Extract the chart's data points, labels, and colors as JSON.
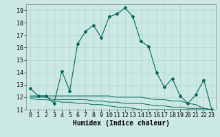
{
  "xlabel": "Humidex (Indice chaleur)",
  "background_color": "#cbe8e4",
  "grid_color": "#b0d4d0",
  "line_color": "#006655",
  "main_y": [
    12.7,
    12.1,
    12.1,
    11.5,
    14.1,
    12.5,
    16.3,
    17.3,
    17.8,
    16.8,
    18.5,
    18.7,
    19.2,
    18.5,
    16.5,
    16.1,
    14.0,
    12.8,
    13.5,
    12.1,
    11.5,
    12.2,
    13.4,
    11.0
  ],
  "line2_y": [
    12.1,
    12.1,
    12.1,
    12.1,
    12.1,
    12.1,
    12.1,
    12.1,
    12.1,
    12.1,
    12.1,
    12.0,
    12.0,
    12.0,
    12.0,
    11.9,
    11.8,
    11.8,
    11.7,
    11.7,
    11.5,
    11.4,
    11.1,
    11.0
  ],
  "line3_y": [
    12.0,
    12.0,
    12.0,
    11.8,
    11.8,
    11.8,
    11.8,
    11.8,
    11.7,
    11.7,
    11.6,
    11.6,
    11.5,
    11.5,
    11.5,
    11.4,
    11.3,
    11.3,
    11.2,
    11.2,
    11.1,
    11.1,
    11.1,
    11.0
  ],
  "line4_y": [
    11.9,
    11.8,
    11.8,
    11.7,
    11.6,
    11.6,
    11.5,
    11.5,
    11.4,
    11.4,
    11.3,
    11.2,
    11.2,
    11.1,
    11.0,
    11.0,
    11.0,
    11.0,
    11.0,
    11.0,
    11.0,
    11.0,
    11.0,
    11.0
  ],
  "ylim": [
    11,
    19.5
  ],
  "xlim": [
    -0.5,
    23.5
  ],
  "yticks": [
    11,
    12,
    13,
    14,
    15,
    16,
    17,
    18,
    19
  ],
  "xticks": [
    0,
    1,
    2,
    3,
    4,
    5,
    6,
    7,
    8,
    9,
    10,
    11,
    12,
    13,
    14,
    15,
    16,
    17,
    18,
    19,
    20,
    21,
    22,
    23
  ],
  "tick_fontsize": 6,
  "label_fontsize": 7
}
